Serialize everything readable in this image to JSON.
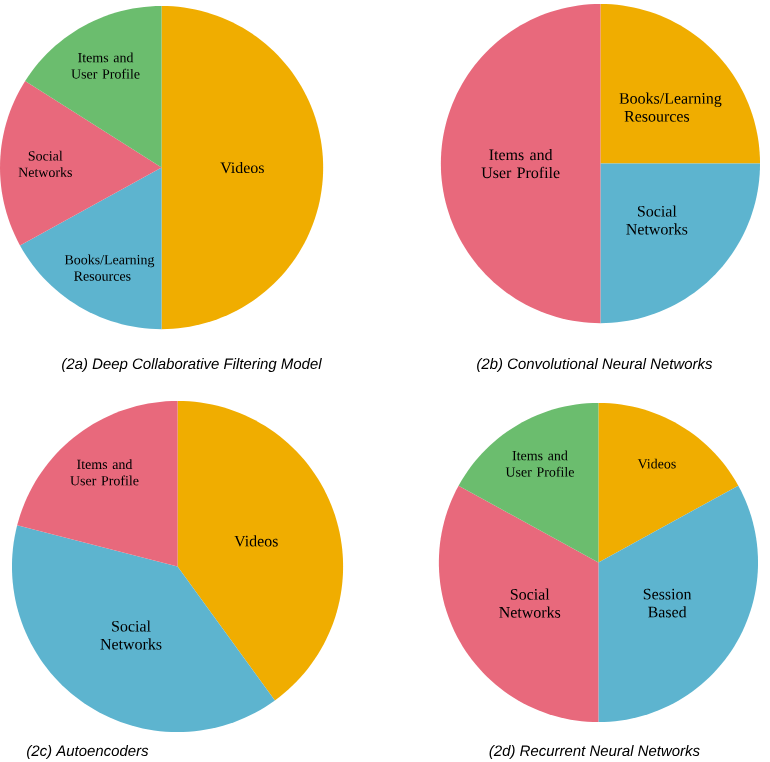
{
  "chart_data": [
    {
      "type": "pie",
      "title": "(2a) Deep Collaborative Filtering Model",
      "categories": [
        "Videos",
        "Books/Learning Resources",
        "Social Networks",
        "Items and User Profile"
      ],
      "values": [
        50,
        17,
        17,
        16
      ],
      "colors": [
        "#f0ad00",
        "#5db4cf",
        "#e8697c",
        "#6bbd6e"
      ]
    },
    {
      "type": "pie",
      "title": "(2b) Convolutional Neural Networks",
      "categories": [
        "Books/Learning Resources",
        "Social Networks",
        "Items and User Profile"
      ],
      "values": [
        25,
        25,
        50
      ],
      "colors": [
        "#f0ad00",
        "#5db4cf",
        "#e8697c"
      ]
    },
    {
      "type": "pie",
      "title": "(2c) Autoencoders",
      "categories": [
        "Videos",
        "Social Networks",
        "Items and User Profile"
      ],
      "values": [
        40,
        39,
        21
      ],
      "colors": [
        "#f0ad00",
        "#5db4cf",
        "#e8697c"
      ]
    },
    {
      "type": "pie",
      "title": "(2d) Recurrent Neural Networks",
      "categories": [
        "Videos",
        "Session Based",
        "Social Networks",
        "Items and User Profile"
      ],
      "values": [
        17,
        33,
        33,
        17
      ],
      "colors": [
        "#f0ad00",
        "#5db4cf",
        "#e8697c",
        "#6bbd6e"
      ]
    }
  ]
}
